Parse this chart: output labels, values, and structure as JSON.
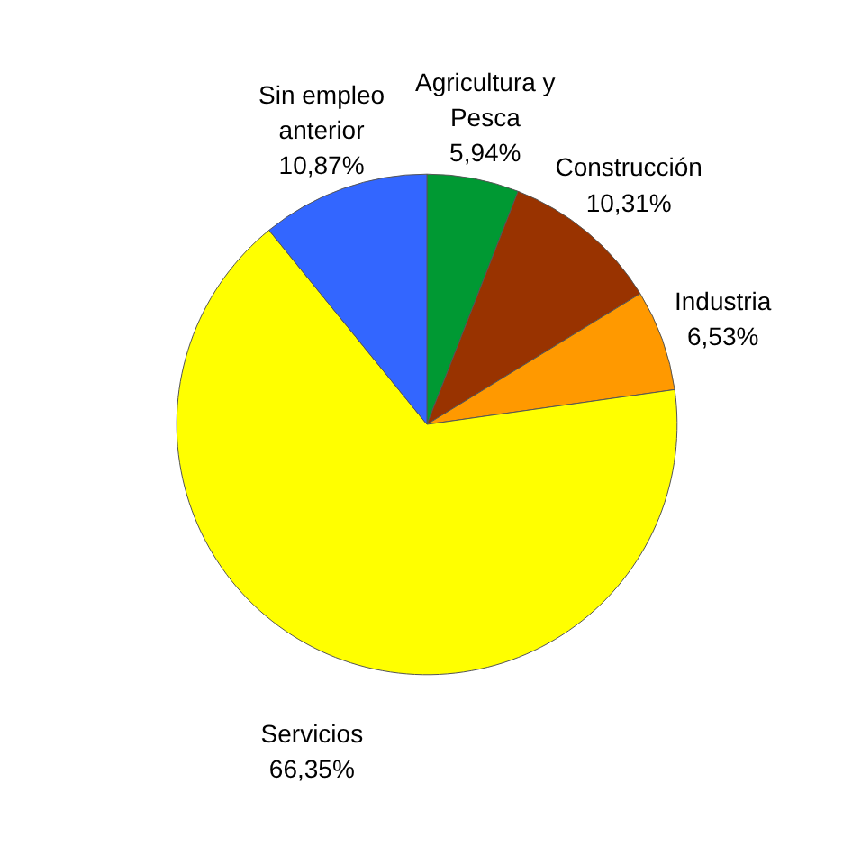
{
  "chart_data": {
    "type": "pie",
    "categories": [
      "Agricultura y Pesca",
      "Construcción",
      "Industria",
      "Servicios",
      "Sin empleo anterior"
    ],
    "values": [
      5.94,
      10.31,
      6.53,
      66.35,
      10.87
    ],
    "value_labels": [
      "5,94%",
      "10,31%",
      "6,53%",
      "66,35%",
      "10,87%"
    ],
    "colors": [
      "#009933",
      "#993300",
      "#ff9900",
      "#ffff00",
      "#3366ff"
    ]
  }
}
